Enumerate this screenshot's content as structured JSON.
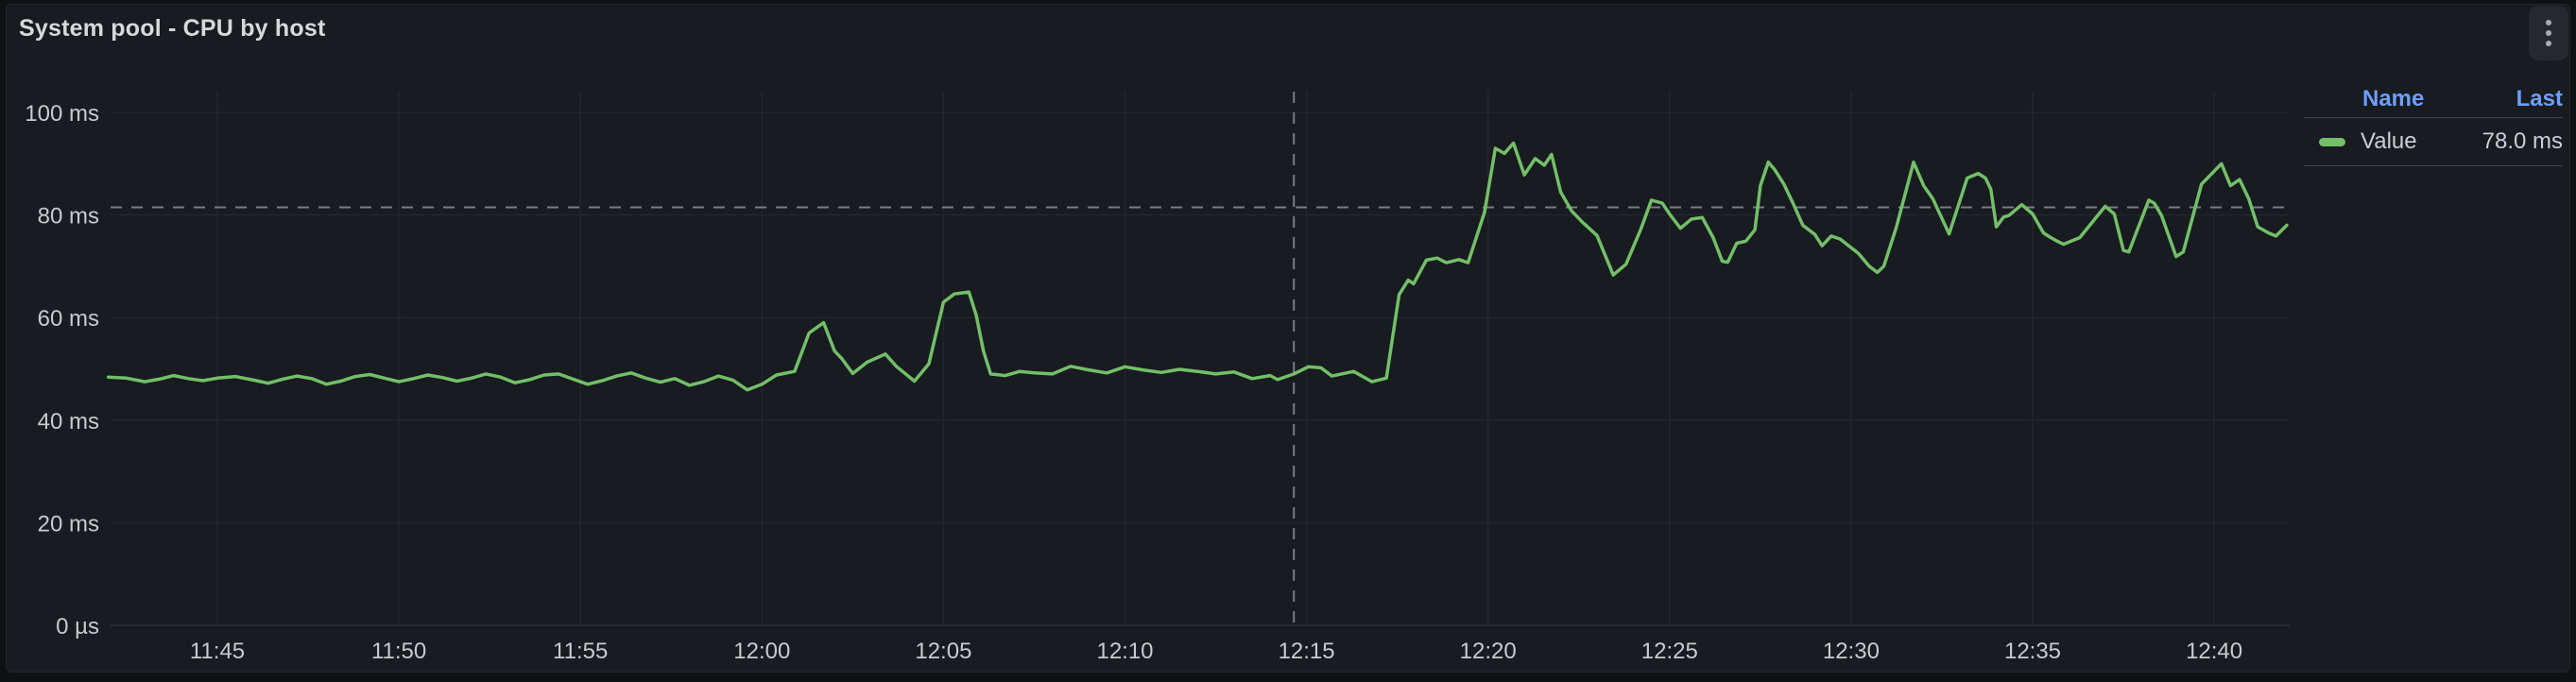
{
  "panel": {
    "title": "System pool - CPU by host",
    "menu_icon": "kebab-vertical-icon"
  },
  "legend": {
    "columns": [
      "Name",
      "Last"
    ],
    "series": [
      {
        "name": "Value",
        "last": "78.0 ms",
        "color": "#73bf69"
      }
    ]
  },
  "colors": {
    "panel_bg": "#181b1f",
    "page_bg": "#0f1115",
    "series_green": "#73bf69",
    "legend_link_blue": "#6e9fff",
    "text_primary": "#ccccdc",
    "tick_text": "#c9cacf",
    "grid_line": "#23262c",
    "crosshair": "#8a8d93"
  },
  "chart_data": {
    "type": "line",
    "title": "System pool - CPU by host",
    "unit": "ms",
    "grid": true,
    "legend_position": "right-table",
    "x_axis": {
      "kind": "time",
      "range_minutes_after_11_00": [
        42.05,
        102.1
      ],
      "ticks": [
        {
          "minutes": 45,
          "label": "11:45"
        },
        {
          "minutes": 50,
          "label": "11:50"
        },
        {
          "minutes": 55,
          "label": "11:55"
        },
        {
          "minutes": 60,
          "label": "12:00"
        },
        {
          "minutes": 65,
          "label": "12:05"
        },
        {
          "minutes": 70,
          "label": "12:10"
        },
        {
          "minutes": 75,
          "label": "12:15"
        },
        {
          "minutes": 80,
          "label": "12:20"
        },
        {
          "minutes": 85,
          "label": "12:25"
        },
        {
          "minutes": 90,
          "label": "12:30"
        },
        {
          "minutes": 95,
          "label": "12:35"
        },
        {
          "minutes": 100,
          "label": "12:40"
        }
      ]
    },
    "y_axis": {
      "range_ms": [
        0,
        104
      ],
      "ticks": [
        {
          "value": 0,
          "label": "0 µs"
        },
        {
          "value": 20,
          "label": "20 ms"
        },
        {
          "value": 40,
          "label": "40 ms"
        },
        {
          "value": 60,
          "label": "60 ms"
        },
        {
          "value": 80,
          "label": "80 ms"
        },
        {
          "value": 100,
          "label": "100 ms"
        }
      ]
    },
    "crosshair": {
      "x_minutes_after_11_00": 74.65,
      "value_ms": 81.5
    },
    "points_format": "[minutes after 11:00, milliseconds]",
    "series": [
      {
        "name": "Value",
        "color": "#73bf69",
        "last_ms": 78.0,
        "points": [
          [
            42.0,
            48.4
          ],
          [
            42.5,
            48.2
          ],
          [
            43.0,
            47.5
          ],
          [
            43.4,
            48.0
          ],
          [
            43.8,
            48.7
          ],
          [
            44.2,
            48.1
          ],
          [
            44.6,
            47.7
          ],
          [
            45.0,
            48.2
          ],
          [
            45.5,
            48.5
          ],
          [
            46.0,
            47.8
          ],
          [
            46.4,
            47.2
          ],
          [
            46.8,
            48.0
          ],
          [
            47.2,
            48.6
          ],
          [
            47.6,
            48.1
          ],
          [
            48.0,
            47.0
          ],
          [
            48.4,
            47.6
          ],
          [
            48.8,
            48.5
          ],
          [
            49.2,
            48.9
          ],
          [
            49.6,
            48.2
          ],
          [
            50.0,
            47.5
          ],
          [
            50.4,
            48.1
          ],
          [
            50.8,
            48.8
          ],
          [
            51.2,
            48.3
          ],
          [
            51.6,
            47.6
          ],
          [
            52.0,
            48.2
          ],
          [
            52.4,
            49.0
          ],
          [
            52.8,
            48.4
          ],
          [
            53.2,
            47.3
          ],
          [
            53.6,
            47.9
          ],
          [
            54.0,
            48.8
          ],
          [
            54.4,
            49.0
          ],
          [
            54.8,
            48.0
          ],
          [
            55.2,
            47.0
          ],
          [
            55.6,
            47.7
          ],
          [
            56.0,
            48.6
          ],
          [
            56.4,
            49.2
          ],
          [
            56.8,
            48.2
          ],
          [
            57.2,
            47.4
          ],
          [
            57.6,
            48.1
          ],
          [
            58.0,
            46.8
          ],
          [
            58.4,
            47.5
          ],
          [
            58.8,
            48.6
          ],
          [
            59.2,
            47.8
          ],
          [
            59.6,
            45.9
          ],
          [
            60.0,
            47.0
          ],
          [
            60.4,
            48.8
          ],
          [
            60.9,
            49.5
          ],
          [
            61.3,
            57.0
          ],
          [
            61.7,
            59.0
          ],
          [
            62.0,
            53.5
          ],
          [
            62.2,
            52.0
          ],
          [
            62.5,
            49.1
          ],
          [
            62.9,
            51.3
          ],
          [
            63.4,
            52.9
          ],
          [
            63.7,
            50.5
          ],
          [
            64.2,
            47.6
          ],
          [
            64.6,
            51.0
          ],
          [
            65.0,
            63.0
          ],
          [
            65.3,
            64.6
          ],
          [
            65.7,
            65.0
          ],
          [
            65.9,
            60.5
          ],
          [
            66.1,
            53.5
          ],
          [
            66.3,
            49.0
          ],
          [
            66.7,
            48.7
          ],
          [
            67.1,
            49.5
          ],
          [
            67.5,
            49.2
          ],
          [
            68.0,
            49.0
          ],
          [
            68.5,
            50.5
          ],
          [
            69.0,
            49.8
          ],
          [
            69.5,
            49.2
          ],
          [
            70.0,
            50.4
          ],
          [
            70.5,
            49.8
          ],
          [
            71.0,
            49.3
          ],
          [
            71.5,
            49.9
          ],
          [
            72.0,
            49.5
          ],
          [
            72.5,
            49.0
          ],
          [
            73.0,
            49.4
          ],
          [
            73.5,
            48.1
          ],
          [
            74.0,
            48.7
          ],
          [
            74.2,
            47.9
          ],
          [
            74.65,
            49.0
          ],
          [
            75.05,
            50.4
          ],
          [
            75.4,
            50.2
          ],
          [
            75.7,
            48.6
          ],
          [
            76.3,
            49.5
          ],
          [
            76.8,
            47.5
          ],
          [
            77.2,
            48.2
          ],
          [
            77.55,
            64.5
          ],
          [
            77.8,
            67.3
          ],
          [
            77.95,
            66.6
          ],
          [
            78.3,
            71.2
          ],
          [
            78.6,
            71.6
          ],
          [
            78.85,
            70.7
          ],
          [
            79.2,
            71.3
          ],
          [
            79.45,
            70.7
          ],
          [
            79.9,
            80.5
          ],
          [
            80.2,
            93.0
          ],
          [
            80.45,
            92.0
          ],
          [
            80.7,
            94.0
          ],
          [
            81.0,
            87.8
          ],
          [
            81.3,
            91.0
          ],
          [
            81.55,
            89.7
          ],
          [
            81.75,
            91.8
          ],
          [
            82.0,
            84.5
          ],
          [
            82.3,
            80.8
          ],
          [
            82.6,
            78.6
          ],
          [
            83.0,
            76.0
          ],
          [
            83.45,
            68.3
          ],
          [
            83.8,
            70.4
          ],
          [
            84.2,
            77.1
          ],
          [
            84.5,
            82.9
          ],
          [
            84.8,
            82.3
          ],
          [
            85.0,
            80.2
          ],
          [
            85.3,
            77.4
          ],
          [
            85.6,
            79.2
          ],
          [
            85.9,
            79.5
          ],
          [
            86.2,
            75.6
          ],
          [
            86.45,
            71.0
          ],
          [
            86.6,
            70.8
          ],
          [
            86.85,
            74.5
          ],
          [
            87.1,
            74.9
          ],
          [
            87.35,
            77.1
          ],
          [
            87.5,
            85.7
          ],
          [
            87.72,
            90.3
          ],
          [
            87.9,
            88.8
          ],
          [
            88.15,
            86.0
          ],
          [
            88.4,
            82.3
          ],
          [
            88.67,
            78.0
          ],
          [
            89.0,
            76.2
          ],
          [
            89.2,
            74.0
          ],
          [
            89.45,
            75.9
          ],
          [
            89.7,
            75.3
          ],
          [
            90.2,
            72.5
          ],
          [
            90.5,
            70.0
          ],
          [
            90.72,
            68.8
          ],
          [
            90.9,
            70.0
          ],
          [
            91.25,
            77.7
          ],
          [
            91.72,
            90.3
          ],
          [
            92.0,
            85.7
          ],
          [
            92.25,
            83.2
          ],
          [
            92.7,
            76.3
          ],
          [
            93.2,
            87.2
          ],
          [
            93.5,
            88.1
          ],
          [
            93.7,
            87.2
          ],
          [
            93.85,
            85.0
          ],
          [
            94.0,
            77.7
          ],
          [
            94.2,
            79.6
          ],
          [
            94.35,
            79.9
          ],
          [
            94.7,
            82.0
          ],
          [
            95.0,
            80.2
          ],
          [
            95.3,
            76.5
          ],
          [
            95.5,
            75.6
          ],
          [
            95.65,
            75.0
          ],
          [
            95.85,
            74.3
          ],
          [
            96.3,
            75.6
          ],
          [
            97.0,
            81.7
          ],
          [
            97.25,
            80.2
          ],
          [
            97.5,
            73.1
          ],
          [
            97.65,
            72.8
          ],
          [
            98.2,
            82.9
          ],
          [
            98.35,
            82.3
          ],
          [
            98.55,
            79.9
          ],
          [
            98.95,
            71.9
          ],
          [
            99.15,
            72.8
          ],
          [
            99.65,
            86.0
          ],
          [
            100.2,
            90.0
          ],
          [
            100.45,
            85.7
          ],
          [
            100.7,
            86.9
          ],
          [
            100.95,
            83.2
          ],
          [
            101.2,
            77.7
          ],
          [
            101.5,
            76.5
          ],
          [
            101.7,
            75.9
          ],
          [
            102.0,
            78.0
          ]
        ]
      }
    ]
  }
}
